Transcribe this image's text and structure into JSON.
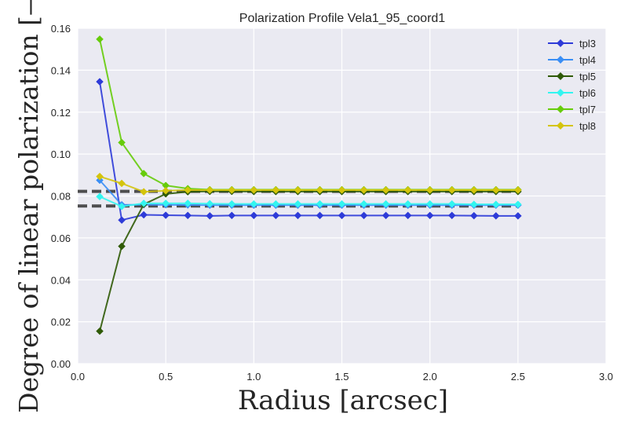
{
  "chart_data": {
    "type": "line",
    "title": "Polarization Profile Vela1_95_coord1",
    "xlabel": "Radius [arcsec]",
    "ylabel": "Degree of linear polarization [—]",
    "xlim": [
      0.0,
      3.0
    ],
    "ylim": [
      0.0,
      0.16
    ],
    "xticks": [
      "0.0",
      "0.5",
      "1.0",
      "1.5",
      "2.0",
      "2.5",
      "3.0"
    ],
    "yticks": [
      "0.00",
      "0.02",
      "0.04",
      "0.06",
      "0.08",
      "0.10",
      "0.12",
      "0.14",
      "0.16"
    ],
    "grid": true,
    "legend_position": "top-right",
    "x": [
      0.125,
      0.25,
      0.375,
      0.5,
      0.625,
      0.75,
      0.875,
      1.0,
      1.125,
      1.25,
      1.375,
      1.5,
      1.625,
      1.75,
      1.875,
      2.0,
      2.125,
      2.25,
      2.375,
      2.5
    ],
    "series": [
      {
        "name": "tpl3",
        "color": "#2e3bd8",
        "values": [
          0.1345,
          0.0685,
          0.071,
          0.0708,
          0.0707,
          0.0705,
          0.0707,
          0.0707,
          0.0707,
          0.0707,
          0.0707,
          0.0707,
          0.0707,
          0.0707,
          0.0707,
          0.0707,
          0.0707,
          0.0706,
          0.0705,
          0.0705
        ]
      },
      {
        "name": "tpl4",
        "color": "#3a8ef5",
        "values": [
          0.0875,
          0.0758,
          0.0758,
          0.0758,
          0.0757,
          0.0756,
          0.0756,
          0.0756,
          0.0756,
          0.0756,
          0.0756,
          0.0756,
          0.0756,
          0.0756,
          0.0756,
          0.0756,
          0.0756,
          0.0756,
          0.0756,
          0.0756
        ]
      },
      {
        "name": "tpl5",
        "color": "#2f5a06",
        "values": [
          0.0155,
          0.056,
          0.076,
          0.081,
          0.082,
          0.0822,
          0.0822,
          0.0821,
          0.0821,
          0.0821,
          0.0821,
          0.0821,
          0.0821,
          0.0821,
          0.0821,
          0.0821,
          0.0821,
          0.0821,
          0.0821,
          0.0821
        ]
      },
      {
        "name": "tpl6",
        "color": "#33f5f0",
        "values": [
          0.0797,
          0.075,
          0.0765,
          0.0765,
          0.0765,
          0.0763,
          0.0762,
          0.0762,
          0.0762,
          0.0762,
          0.0762,
          0.0762,
          0.0762,
          0.0762,
          0.0762,
          0.0762,
          0.0762,
          0.076,
          0.076,
          0.076
        ]
      },
      {
        "name": "tpl7",
        "color": "#66cc0a",
        "values": [
          0.1548,
          0.1055,
          0.0907,
          0.085,
          0.0835,
          0.083,
          0.083,
          0.083,
          0.083,
          0.083,
          0.083,
          0.083,
          0.083,
          0.083,
          0.083,
          0.083,
          0.083,
          0.083,
          0.083,
          0.083
        ]
      },
      {
        "name": "tpl8",
        "color": "#d4c40c",
        "values": [
          0.0893,
          0.086,
          0.082,
          0.0825,
          0.0828,
          0.0828,
          0.0828,
          0.0828,
          0.0828,
          0.0828,
          0.0828,
          0.0828,
          0.0828,
          0.0828,
          0.0828,
          0.0828,
          0.0828,
          0.0828,
          0.0828,
          0.0828
        ]
      }
    ],
    "reference_lines": [
      {
        "y": 0.0822,
        "x_range": [
          0.0,
          2.5
        ],
        "color": "#333333",
        "style": "dashed"
      },
      {
        "y": 0.0752,
        "x_range": [
          0.0,
          2.5
        ],
        "color": "#333333",
        "style": "dashed"
      }
    ]
  }
}
